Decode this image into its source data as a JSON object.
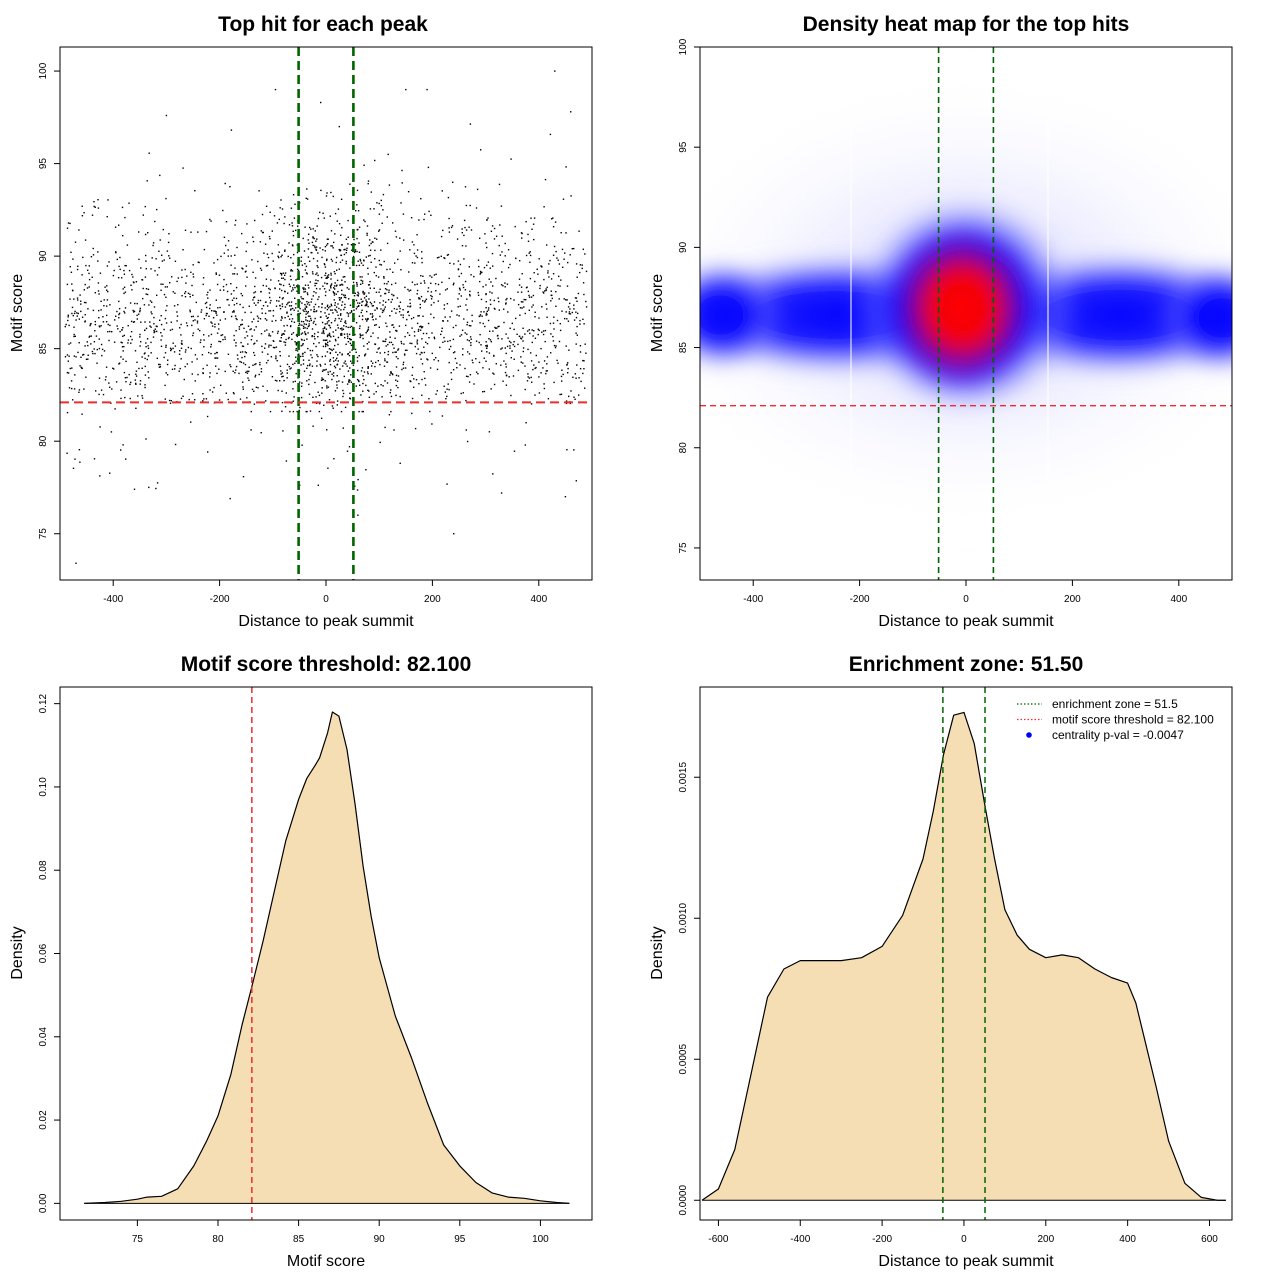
{
  "colors": {
    "points": "#000000",
    "zone_line": "#006400",
    "threshold_line": "#ee2c2c",
    "density_fill": "#f5deb3",
    "density_outline": "#000000",
    "heat_low": "#ffffff",
    "heat_mid": "#0000ff",
    "heat_high": "#ff0000"
  },
  "chart_data": [
    {
      "type": "scatter",
      "title": "Top hit for each peak",
      "xlabel": "Distance to peak summit",
      "ylabel": "Motif score",
      "xlim": [
        -500,
        500
      ],
      "ylim": [
        72.5,
        101.3
      ],
      "xticks": [
        "-400",
        "-200",
        "0",
        "200",
        "400"
      ],
      "xtick_values": [
        -400,
        -200,
        0,
        200,
        400
      ],
      "yticks": [
        "75",
        "80",
        "85",
        "90",
        "95",
        "100"
      ],
      "ytick_values": [
        75,
        80,
        85,
        90,
        95,
        100
      ],
      "points_description": "about 3000 points, one per peak; density concentrated near x=0 and scores 82-92",
      "sample_points": [
        {
          "x": -10,
          "y": 98.3
        },
        {
          "x": 430,
          "y": 100.0
        },
        {
          "x": 460,
          "y": 97.8
        },
        {
          "x": -95,
          "y": 99.0
        },
        {
          "x": 150,
          "y": 99.0
        },
        {
          "x": 190,
          "y": 99.0
        },
        {
          "x": -300,
          "y": 97.6
        },
        {
          "x": 25,
          "y": 97.0
        },
        {
          "x": -470,
          "y": 73.4
        },
        {
          "x": -180,
          "y": 76.9
        },
        {
          "x": 60,
          "y": 76.0
        },
        {
          "x": 240,
          "y": 75.0
        },
        {
          "x": -360,
          "y": 77.4
        },
        {
          "x": 450,
          "y": 77.0
        },
        {
          "x": 330,
          "y": 77.2
        }
      ],
      "vlines": [
        -51.5,
        51.5
      ],
      "hline": 82.1,
      "grid": false,
      "legend": "none"
    },
    {
      "type": "heatmap",
      "title": "Density heat map for the top hits",
      "xlabel": "Distance to peak summit",
      "ylabel": "Motif score",
      "xlim": [
        -500,
        500
      ],
      "ylim": [
        73.4,
        100.0
      ],
      "xticks": [
        "-400",
        "-200",
        "0",
        "200",
        "400"
      ],
      "xtick_values": [
        -400,
        -200,
        0,
        200,
        400
      ],
      "yticks": [
        "75",
        "80",
        "85",
        "90",
        "95",
        "100"
      ],
      "ytick_values": [
        75,
        80,
        85,
        90,
        95,
        100
      ],
      "peak": {
        "x": -10,
        "y": 87.0
      },
      "color_scale": [
        "white",
        "blue",
        "red"
      ],
      "vlines": [
        -51.5,
        51.5
      ],
      "hline": 82.1,
      "grid": false,
      "legend": "none"
    },
    {
      "type": "area",
      "title": "Motif score threshold: 82.100",
      "xlabel": "Motif score",
      "ylabel": "Density",
      "xlim": [
        70.2,
        103.2
      ],
      "ylim": [
        -0.004,
        0.124
      ],
      "xticks": [
        "75",
        "80",
        "85",
        "90",
        "95",
        "100"
      ],
      "xtick_values": [
        75,
        80,
        85,
        90,
        95,
        100
      ],
      "yticks": [
        "0.00",
        "0.02",
        "0.04",
        "0.06",
        "0.08",
        "0.10",
        "0.12"
      ],
      "ytick_values": [
        0,
        0.02,
        0.04,
        0.06,
        0.08,
        0.1,
        0.12
      ],
      "x": [
        71.7,
        73,
        74,
        75,
        75.6,
        76.5,
        77.5,
        78.5,
        79.3,
        80,
        80.8,
        81.5,
        82.1,
        82.8,
        83.5,
        84.2,
        85,
        85.5,
        86,
        86.3,
        86.8,
        87.1,
        87.5,
        88,
        88.5,
        89,
        89.5,
        90,
        91,
        92,
        93,
        94,
        95,
        96,
        97,
        98,
        99,
        100,
        101,
        101.8
      ],
      "y": [
        0,
        0.0002,
        0.0005,
        0.001,
        0.0015,
        0.0017,
        0.0035,
        0.009,
        0.015,
        0.021,
        0.031,
        0.043,
        0.052,
        0.063,
        0.075,
        0.087,
        0.097,
        0.102,
        0.105,
        0.107,
        0.113,
        0.118,
        0.117,
        0.109,
        0.096,
        0.081,
        0.069,
        0.059,
        0.045,
        0.035,
        0.024,
        0.014,
        0.009,
        0.005,
        0.0025,
        0.0015,
        0.0012,
        0.0006,
        0.0002,
        0
      ],
      "vline": 82.1,
      "grid": false,
      "legend": "none"
    },
    {
      "type": "area",
      "title": "Enrichment zone: 51.50",
      "xlabel": "Distance to peak summit",
      "ylabel": "Density",
      "xlim": [
        -645,
        655
      ],
      "ylim": [
        -7e-05,
        0.00182
      ],
      "xticks": [
        "-600",
        "-400",
        "-200",
        "0",
        "200",
        "400",
        "600"
      ],
      "xtick_values": [
        -600,
        -400,
        -200,
        0,
        200,
        400,
        600
      ],
      "yticks": [
        "0.0000",
        "0.0005",
        "0.0010",
        "0.0015"
      ],
      "ytick_values": [
        0,
        0.0005,
        0.001,
        0.0015
      ],
      "x": [
        -640,
        -600,
        -560,
        -520,
        -480,
        -440,
        -400,
        -360,
        -300,
        -250,
        -200,
        -150,
        -100,
        -75,
        -50,
        -25,
        0,
        25,
        50,
        75,
        100,
        130,
        160,
        200,
        240,
        280,
        320,
        360,
        400,
        420,
        440,
        470,
        500,
        540,
        580,
        620,
        640
      ],
      "y": [
        0,
        4e-05,
        0.00018,
        0.00045,
        0.00072,
        0.00082,
        0.00085,
        0.00085,
        0.00085,
        0.00086,
        0.0009,
        0.00101,
        0.00121,
        0.00138,
        0.00158,
        0.00172,
        0.00173,
        0.00162,
        0.00141,
        0.00121,
        0.00103,
        0.00094,
        0.00089,
        0.00086,
        0.00087,
        0.00086,
        0.00082,
        0.00079,
        0.00077,
        0.0007,
        0.00058,
        0.0004,
        0.00021,
        6e-05,
        1e-05,
        0,
        0
      ],
      "vlines": [
        -51.5,
        51.5
      ],
      "legend_position": "top-right",
      "legend": [
        {
          "label": "enrichment zone = 51.5",
          "color": "#006400",
          "style": "dotted-line"
        },
        {
          "label": "motif score threshold = 82.100",
          "color": "#ee2c2c",
          "style": "dotted-line"
        },
        {
          "label": "centrality p-val = -0.0047",
          "color": "#0000ff",
          "style": "point"
        }
      ],
      "grid": false
    }
  ]
}
